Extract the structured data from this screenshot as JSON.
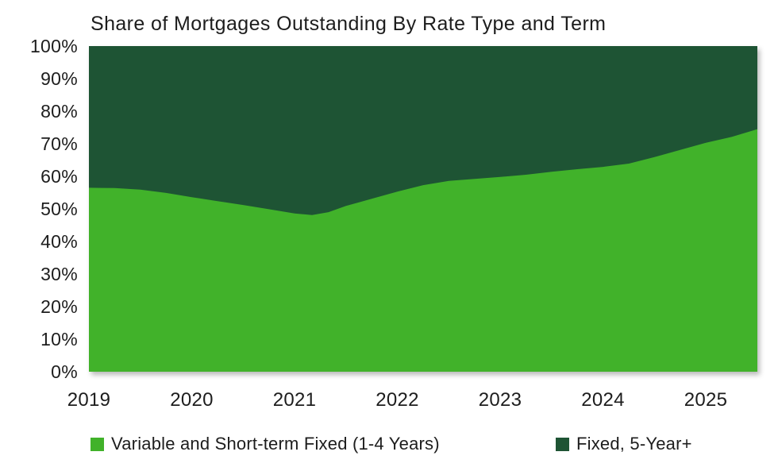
{
  "title": "Share of Mortgages Outstanding By Rate Type and Term",
  "colors": {
    "variable_green": "#41B22A",
    "fixed_dark_green": "#1E5434",
    "text": "#1d1d1d",
    "background": "#ffffff"
  },
  "y_axis": {
    "ticks": [
      "100%",
      "90%",
      "80%",
      "70%",
      "60%",
      "50%",
      "40%",
      "30%",
      "20%",
      "10%",
      "0%"
    ]
  },
  "x_axis": {
    "ticks": [
      "2019",
      "2020",
      "2021",
      "2022",
      "2023",
      "2024",
      "2025"
    ]
  },
  "legend": {
    "items": [
      {
        "label": "Variable and Short-term Fixed (1-4 Years)",
        "color": "#41B22A"
      },
      {
        "label": "Fixed, 5-Year+",
        "color": "#1E5434"
      }
    ]
  },
  "chart_data": {
    "type": "area",
    "stacked": true,
    "title": "Share of Mortgages Outstanding By Rate Type and Term",
    "xlabel": "",
    "ylabel": "",
    "xlim": [
      2019.0,
      2025.5
    ],
    "ylim": [
      0,
      100
    ],
    "grid": false,
    "legend_position": "bottom",
    "x": [
      2019.0,
      2019.25,
      2019.5,
      2019.75,
      2020.0,
      2020.25,
      2020.5,
      2020.75,
      2021.0,
      2021.17,
      2021.33,
      2021.5,
      2021.75,
      2022.0,
      2022.25,
      2022.5,
      2022.75,
      2023.0,
      2023.25,
      2023.5,
      2023.75,
      2024.0,
      2024.25,
      2024.5,
      2024.75,
      2025.0,
      2025.25,
      2025.5
    ],
    "series": [
      {
        "name": "Variable and Short-term Fixed (1-4 Years)",
        "color": "#41B22A",
        "values": [
          56.5,
          56.4,
          55.9,
          54.9,
          53.6,
          52.4,
          51.2,
          49.9,
          48.6,
          48.1,
          49.0,
          50.9,
          53.1,
          55.3,
          57.3,
          58.6,
          59.2,
          59.8,
          60.5,
          61.4,
          62.2,
          62.9,
          63.9,
          65.9,
          68.1,
          70.3,
          72.1,
          74.5
        ]
      },
      {
        "name": "Fixed, 5-Year+",
        "color": "#1E5434",
        "values": [
          43.5,
          43.6,
          44.1,
          45.1,
          46.4,
          47.6,
          48.8,
          50.1,
          51.4,
          51.9,
          51.0,
          49.1,
          46.9,
          44.7,
          42.7,
          41.4,
          40.8,
          40.2,
          39.5,
          38.6,
          37.8,
          37.1,
          36.1,
          34.1,
          31.9,
          29.7,
          27.9,
          25.5
        ]
      }
    ]
  }
}
